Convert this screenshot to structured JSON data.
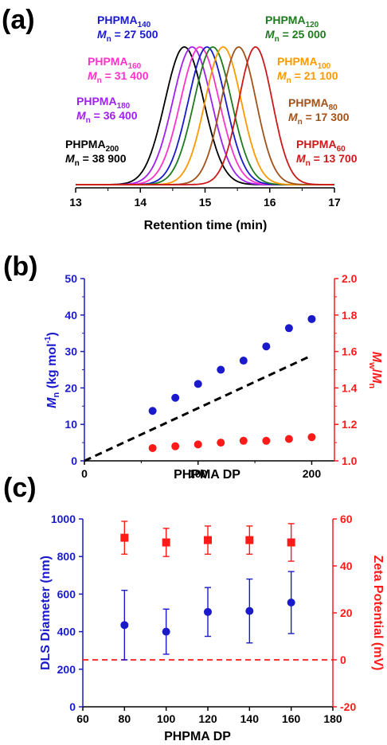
{
  "chart_data": [
    {
      "panel": "(a)",
      "type": "line",
      "xlabel": "Retention time (min)",
      "xlim": [
        13,
        17
      ],
      "xticks": [
        "13",
        "14",
        "15",
        "16",
        "17"
      ],
      "series": [
        {
          "name": "PHPMA200",
          "label_name": "PHPMA",
          "label_sub": "200",
          "mn_text": " = 38 900",
          "peak": 14.68,
          "sigma": 0.3,
          "color": "#000000",
          "label_side": "left",
          "label_row": 3
        },
        {
          "name": "PHPMA180",
          "label_name": "PHPMA",
          "label_sub": "180",
          "mn_text": " = 36 400",
          "peak": 14.8,
          "sigma": 0.3,
          "color": "#a020f0",
          "label_side": "left",
          "label_row": 2
        },
        {
          "name": "PHPMA160",
          "label_name": "PHPMA",
          "label_sub": "160",
          "mn_text": " = 31 400",
          "peak": 14.92,
          "sigma": 0.3,
          "color": "#ff33cc",
          "label_side": "left",
          "label_row": 1
        },
        {
          "name": "PHPMA140",
          "label_name": "PHPMA",
          "label_sub": "140",
          "mn_text": " = 27 500",
          "peak": 15.03,
          "sigma": 0.29,
          "color": "#1a1acc",
          "label_side": "left",
          "label_row": 0
        },
        {
          "name": "PHPMA120",
          "label_name": "PHPMA",
          "label_sub": "120",
          "mn_text": " = 25 000",
          "peak": 15.12,
          "sigma": 0.29,
          "color": "#1e7b1e",
          "label_side": "right",
          "label_row": 0
        },
        {
          "name": "PHPMA100",
          "label_name": "PHPMA",
          "label_sub": "100",
          "mn_text": " = 21 100",
          "peak": 15.28,
          "sigma": 0.28,
          "color": "#ff9900",
          "label_side": "right",
          "label_row": 1
        },
        {
          "name": "PHPMA80",
          "label_name": "PHPMA",
          "label_sub": "80",
          "mn_text": " = 17 300",
          "peak": 15.52,
          "sigma": 0.27,
          "color": "#a0521a",
          "label_side": "right",
          "label_row": 2
        },
        {
          "name": "PHPMA60",
          "label_name": "PHPMA",
          "label_sub": "60",
          "mn_text": " = 13 700",
          "peak": 15.78,
          "sigma": 0.26,
          "color": "#cc1a1a",
          "label_side": "right",
          "label_row": 3
        }
      ],
      "mn_symbol": "M",
      "mn_sub": "n"
    },
    {
      "panel": "(b)",
      "type": "scatter",
      "xlabel": "PHPMA DP",
      "xlim": [
        0,
        220
      ],
      "xticks": [
        "0",
        "100",
        "200"
      ],
      "xtick_values": [
        0,
        100,
        200
      ],
      "ylabel_left_main": "M",
      "ylabel_left_sub": "n",
      "ylabel_left_rest": " (kg mol",
      "ylabel_left_sup": "-1",
      "ylabel_left_close": ")",
      "ylim_left": [
        0,
        50
      ],
      "yticks_left": [
        "0",
        "10",
        "20",
        "30",
        "40",
        "50"
      ],
      "ylabel_right_a": "M",
      "ylabel_right_a_sub": "w",
      "ylabel_right_slash": "/",
      "ylabel_right_b": "M",
      "ylabel_right_b_sub": "n",
      "ylim_right": [
        1.0,
        2.0
      ],
      "yticks_right": [
        "1.0",
        "1.2",
        "1.4",
        "1.6",
        "1.8",
        "2.0"
      ],
      "series": [
        {
          "axis": "left",
          "color": "#1a1acc",
          "x": [
            60,
            80,
            100,
            120,
            140,
            160,
            180,
            200
          ],
          "y": [
            13.7,
            17.3,
            21.1,
            25.0,
            27.5,
            31.4,
            36.4,
            38.9
          ]
        },
        {
          "axis": "right",
          "color": "#ff1a1a",
          "x": [
            60,
            80,
            100,
            120,
            140,
            160,
            180,
            200
          ],
          "y": [
            1.07,
            1.08,
            1.09,
            1.1,
            1.11,
            1.11,
            1.12,
            1.13
          ]
        }
      ],
      "theory_line": {
        "axis": "left",
        "color": "#000000",
        "x": [
          0,
          200
        ],
        "y": [
          0,
          28.9
        ]
      }
    },
    {
      "panel": "(c)",
      "type": "scatter",
      "xlabel": "PHPMA DP",
      "xlim": [
        60,
        180
      ],
      "xticks": [
        "60",
        "80",
        "100",
        "120",
        "140",
        "160",
        "180"
      ],
      "ylabel_left": "DLS Diameter (nm)",
      "ylim_left": [
        0,
        1000
      ],
      "yticks_left": [
        "0",
        "200",
        "400",
        "600",
        "800",
        "1000"
      ],
      "ylabel_right": "Zeta Potential (mV)",
      "ylim_right": [
        -20,
        60
      ],
      "yticks_right": [
        "-20",
        "0",
        "20",
        "40",
        "60"
      ],
      "series": [
        {
          "axis": "left",
          "color": "#1a1acc",
          "marker": "circle",
          "x": [
            80,
            100,
            120,
            140,
            160
          ],
          "y": [
            435,
            400,
            505,
            510,
            555
          ],
          "err": [
            185,
            120,
            130,
            170,
            165
          ]
        },
        {
          "axis": "right",
          "color": "#ff1a1a",
          "marker": "square",
          "x": [
            80,
            100,
            120,
            140,
            160
          ],
          "y": [
            52,
            50,
            51,
            51,
            50
          ],
          "err": [
            7,
            6,
            6,
            6,
            8
          ]
        }
      ],
      "zero_line": {
        "axis": "right",
        "y": 0,
        "color": "#ff1a1a"
      }
    }
  ]
}
